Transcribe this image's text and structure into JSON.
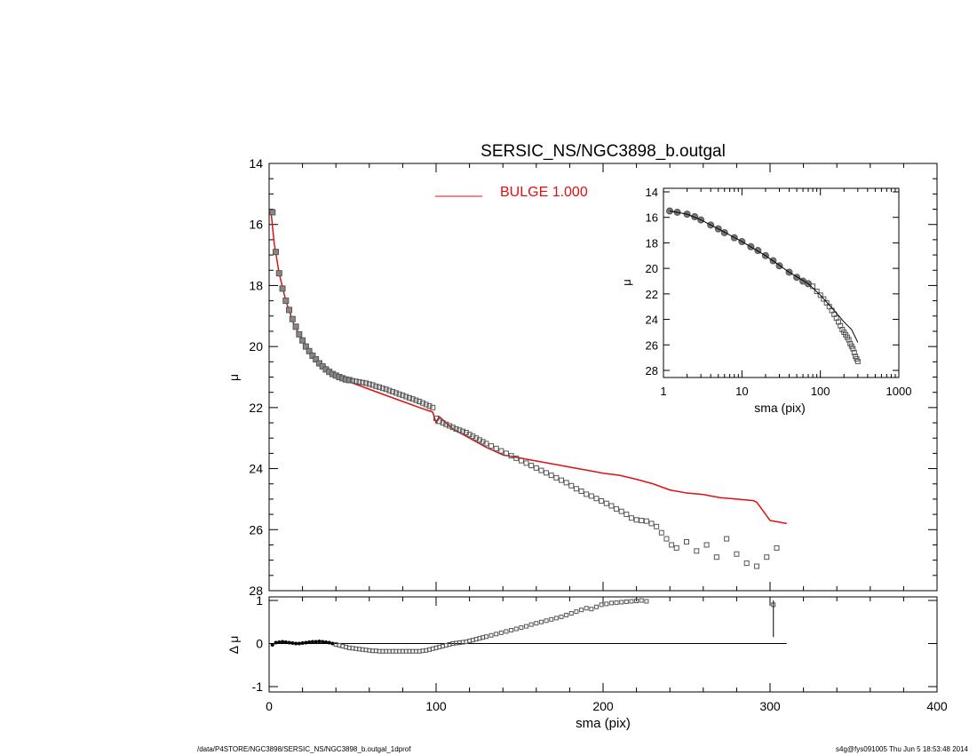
{
  "footer": {
    "left": "/data/P4STORE/NGC3898/SERSIC_NS/NGC3898_b.outgal_1dprof",
    "right": "s4g@fys091005  Thu Jun  5 18:53:48 2014"
  },
  "colors": {
    "data": "#555555",
    "model": "#dd1111",
    "axis": "#000000"
  },
  "chart_data": [
    {
      "id": "main-profile",
      "type": "scatter",
      "title": "SERSIC_NS/NGC3898_b.outgal",
      "xlabel": "",
      "ylabel": "μ",
      "xlim": [
        0,
        400
      ],
      "ylim": [
        28,
        14
      ],
      "y_inverted": true,
      "xticks": [
        0,
        100,
        200,
        300,
        400
      ],
      "yticks": [
        14,
        16,
        18,
        20,
        22,
        24,
        26,
        28
      ],
      "legend": {
        "placement": "top-center",
        "entries": [
          {
            "label": "BULGE  1.000",
            "color": "#dd1111"
          }
        ]
      },
      "series": [
        {
          "kind": "data-points",
          "x": [
            2,
            4,
            6,
            8,
            10,
            12,
            14,
            16,
            18,
            20,
            22,
            24,
            26,
            28,
            30,
            32,
            34,
            36,
            38,
            40,
            42,
            44,
            46,
            48,
            50,
            52,
            54,
            56,
            58,
            60,
            62,
            64,
            66,
            68,
            70,
            72,
            74,
            76,
            78,
            80,
            82,
            84,
            86,
            88,
            90,
            92,
            94,
            96,
            98,
            100,
            102,
            104,
            106,
            108,
            110,
            112,
            114,
            116,
            118,
            120,
            122,
            124,
            126,
            128,
            130,
            133,
            136,
            139,
            142,
            145,
            148,
            151,
            154,
            157,
            160,
            163,
            166,
            169,
            172,
            175,
            178,
            181,
            184,
            187,
            190,
            193,
            196,
            199,
            202,
            205,
            208,
            211,
            214,
            217,
            220,
            223,
            226,
            229,
            232,
            235,
            238,
            241,
            244,
            250,
            256,
            262,
            268,
            274,
            280,
            286,
            292,
            298,
            304
          ],
          "y": [
            15.6,
            16.9,
            17.6,
            18.1,
            18.5,
            18.8,
            19.1,
            19.35,
            19.6,
            19.8,
            20.0,
            20.15,
            20.3,
            20.42,
            20.55,
            20.65,
            20.75,
            20.83,
            20.9,
            20.95,
            21.0,
            21.04,
            21.08,
            21.1,
            21.12,
            21.14,
            21.16,
            21.18,
            21.2,
            21.23,
            21.26,
            21.3,
            21.33,
            21.37,
            21.4,
            21.44,
            21.48,
            21.52,
            21.56,
            21.6,
            21.64,
            21.68,
            21.72,
            21.76,
            21.8,
            21.85,
            21.9,
            21.95,
            22.0,
            22.35,
            22.45,
            22.5,
            22.55,
            22.6,
            22.65,
            22.7,
            22.74,
            22.78,
            22.82,
            22.88,
            22.94,
            23.0,
            23.06,
            23.12,
            23.18,
            23.26,
            23.34,
            23.42,
            23.5,
            23.58,
            23.66,
            23.74,
            23.82,
            23.9,
            23.98,
            24.06,
            24.14,
            24.22,
            24.3,
            24.38,
            24.46,
            24.56,
            24.66,
            24.74,
            24.84,
            24.9,
            24.98,
            25.06,
            25.14,
            25.22,
            25.32,
            25.4,
            25.5,
            25.62,
            25.68,
            25.7,
            25.72,
            25.8,
            25.9,
            26.1,
            26.3,
            26.5,
            26.6,
            26.4,
            26.7,
            26.5,
            26.9,
            26.3,
            26.8,
            27.1,
            27.2,
            26.9,
            26.6
          ]
        },
        {
          "kind": "model-line",
          "name": "BULGE  1.000",
          "color": "#dd1111",
          "x": [
            1,
            3,
            6,
            10,
            15,
            20,
            30,
            40,
            50,
            60,
            70,
            80,
            90,
            98,
            100,
            102,
            110,
            120,
            130,
            140,
            150,
            160,
            170,
            180,
            190,
            200,
            210,
            220,
            230,
            240,
            250,
            260,
            270,
            280,
            290,
            292,
            300,
            310
          ],
          "y": [
            15.5,
            16.6,
            17.6,
            18.5,
            19.3,
            19.8,
            20.5,
            20.9,
            21.2,
            21.4,
            21.6,
            21.8,
            22.0,
            22.15,
            22.5,
            22.3,
            22.7,
            23.0,
            23.3,
            23.55,
            23.65,
            23.75,
            23.85,
            23.95,
            24.05,
            24.15,
            24.22,
            24.35,
            24.5,
            24.7,
            24.8,
            24.85,
            24.95,
            25.0,
            25.05,
            25.1,
            25.7,
            25.8
          ]
        }
      ]
    },
    {
      "id": "residuals",
      "type": "scatter",
      "xlabel": "sma (pix)",
      "ylabel": "Δ μ",
      "xlim": [
        0,
        400
      ],
      "ylim": [
        -1,
        1
      ],
      "xticks": [
        0,
        100,
        200,
        300,
        400
      ],
      "yticks": [
        -1,
        0,
        1
      ],
      "series": [
        {
          "kind": "residual-points",
          "x": [
            2,
            4,
            6,
            8,
            10,
            12,
            14,
            16,
            18,
            20,
            22,
            24,
            26,
            28,
            30,
            32,
            34,
            36,
            38,
            40,
            42,
            44,
            46,
            48,
            50,
            52,
            54,
            56,
            58,
            60,
            62,
            64,
            66,
            68,
            70,
            72,
            74,
            76,
            78,
            80,
            82,
            84,
            86,
            88,
            90,
            92,
            94,
            96,
            98,
            100,
            102,
            104,
            106,
            108,
            110,
            112,
            114,
            116,
            118,
            120,
            122,
            124,
            126,
            128,
            130,
            133,
            136,
            139,
            142,
            145,
            148,
            151,
            154,
            157,
            160,
            163,
            166,
            169,
            172,
            175,
            178,
            181,
            184,
            187,
            190,
            193,
            196,
            199,
            202,
            205,
            208,
            211,
            214,
            217,
            220,
            223,
            226,
            302
          ],
          "y": [
            -0.03,
            0.02,
            0.03,
            0.04,
            0.03,
            0.02,
            0.01,
            0.0,
            0.0,
            0.01,
            0.02,
            0.03,
            0.04,
            0.04,
            0.05,
            0.04,
            0.03,
            0.02,
            0.0,
            -0.02,
            -0.04,
            -0.06,
            -0.08,
            -0.1,
            -0.11,
            -0.12,
            -0.13,
            -0.14,
            -0.15,
            -0.16,
            -0.17,
            -0.17,
            -0.18,
            -0.18,
            -0.18,
            -0.18,
            -0.18,
            -0.18,
            -0.18,
            -0.18,
            -0.18,
            -0.18,
            -0.18,
            -0.18,
            -0.18,
            -0.17,
            -0.16,
            -0.14,
            -0.12,
            -0.1,
            -0.08,
            -0.06,
            -0.04,
            -0.02,
            0.0,
            0.01,
            0.02,
            0.03,
            0.04,
            0.06,
            0.08,
            0.1,
            0.12,
            0.14,
            0.16,
            0.19,
            0.22,
            0.25,
            0.28,
            0.31,
            0.34,
            0.37,
            0.4,
            0.44,
            0.47,
            0.5,
            0.53,
            0.56,
            0.59,
            0.62,
            0.66,
            0.7,
            0.74,
            0.78,
            0.82,
            0.8,
            0.85,
            0.9,
            0.92,
            0.94,
            0.95,
            0.96,
            0.97,
            0.98,
            0.99,
            1.0,
            0.98,
            0.9
          ]
        },
        {
          "kind": "zero-line",
          "x": [
            0,
            310
          ],
          "y": [
            0,
            0
          ]
        }
      ]
    },
    {
      "id": "inset-log-profile",
      "type": "scatter",
      "xlabel": "sma (pix)",
      "ylabel": "μ",
      "x_scale": "log",
      "xlim": [
        1,
        1000
      ],
      "ylim": [
        28,
        14
      ],
      "y_inverted": true,
      "xticks": [
        1,
        10,
        100,
        1000
      ],
      "yticks": [
        14,
        16,
        18,
        20,
        22,
        24,
        26,
        28
      ],
      "series": [
        {
          "kind": "data-points",
          "x": [
            1.2,
            1.5,
            2,
            2.5,
            3,
            4,
            5,
            6,
            8,
            10,
            13,
            16,
            20,
            25,
            30,
            40,
            50,
            60,
            70,
            80,
            90,
            100,
            110,
            120,
            130,
            140,
            150,
            160,
            170,
            180,
            190,
            200,
            210,
            220,
            230,
            240,
            250,
            260,
            270,
            280,
            290,
            300
          ],
          "y": [
            15.5,
            15.6,
            15.75,
            15.95,
            16.2,
            16.6,
            16.9,
            17.2,
            17.6,
            17.9,
            18.3,
            18.6,
            19.0,
            19.4,
            19.8,
            20.3,
            20.7,
            21.0,
            21.2,
            21.4,
            21.8,
            22.1,
            22.4,
            22.7,
            23.0,
            23.3,
            23.6,
            23.9,
            24.2,
            24.5,
            24.8,
            25.0,
            25.2,
            25.4,
            25.6,
            25.9,
            26.1,
            26.3,
            26.6,
            26.9,
            27.1,
            27.3
          ]
        },
        {
          "kind": "model-line",
          "x": [
            1.2,
            2,
            3,
            5,
            10,
            20,
            40,
            70,
            100,
            150,
            200,
            250,
            300
          ],
          "y": [
            15.5,
            15.75,
            16.2,
            16.9,
            17.9,
            19.0,
            20.3,
            21.2,
            22.1,
            23.3,
            24.2,
            24.8,
            25.8
          ]
        }
      ]
    }
  ]
}
